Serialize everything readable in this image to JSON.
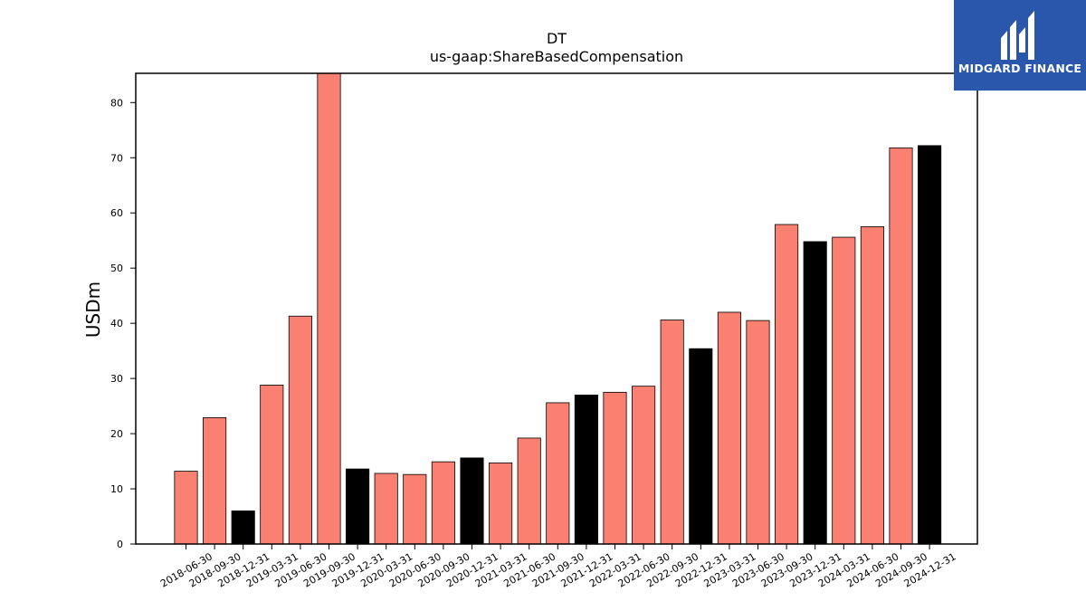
{
  "logo": {
    "text": "MIDGARD FINANCE"
  },
  "chart_data": {
    "type": "bar",
    "title": "DT",
    "subtitle": "us-gaap:ShareBasedCompensation",
    "xlabel": "",
    "ylabel": "USDm",
    "ylim": [
      0,
      85.3
    ],
    "yticks": [
      0,
      10,
      20,
      30,
      40,
      50,
      60,
      70,
      80
    ],
    "grid": false,
    "colors": {
      "quarter": "#fa8072",
      "year_end": "#000000",
      "edge": "#000000"
    },
    "categories": [
      "2018-06-30",
      "2018-09-30",
      "2018-12-31",
      "2019-03-31",
      "2019-06-30",
      "2019-09-30",
      "2019-12-31",
      "2020-03-31",
      "2020-06-30",
      "2020-09-30",
      "2020-12-31",
      "2021-03-31",
      "2021-06-30",
      "2021-09-30",
      "2021-12-31",
      "2022-03-31",
      "2022-06-30",
      "2022-09-30",
      "2022-12-31",
      "2023-03-31",
      "2023-06-30",
      "2023-09-30",
      "2023-12-31",
      "2024-03-31",
      "2024-06-30",
      "2024-09-30",
      "2024-12-31"
    ],
    "values": [
      13.2,
      22.9,
      6.0,
      28.8,
      41.3,
      85.3,
      13.6,
      12.8,
      12.6,
      14.9,
      15.6,
      14.7,
      19.2,
      25.6,
      27.0,
      27.5,
      28.6,
      40.6,
      35.4,
      42.0,
      40.5,
      57.9,
      54.8,
      55.6,
      57.5,
      71.8,
      72.2
    ],
    "year_end": [
      false,
      false,
      true,
      false,
      false,
      false,
      true,
      false,
      false,
      false,
      true,
      false,
      false,
      false,
      true,
      false,
      false,
      false,
      true,
      false,
      false,
      false,
      true,
      false,
      false,
      false,
      true
    ]
  }
}
